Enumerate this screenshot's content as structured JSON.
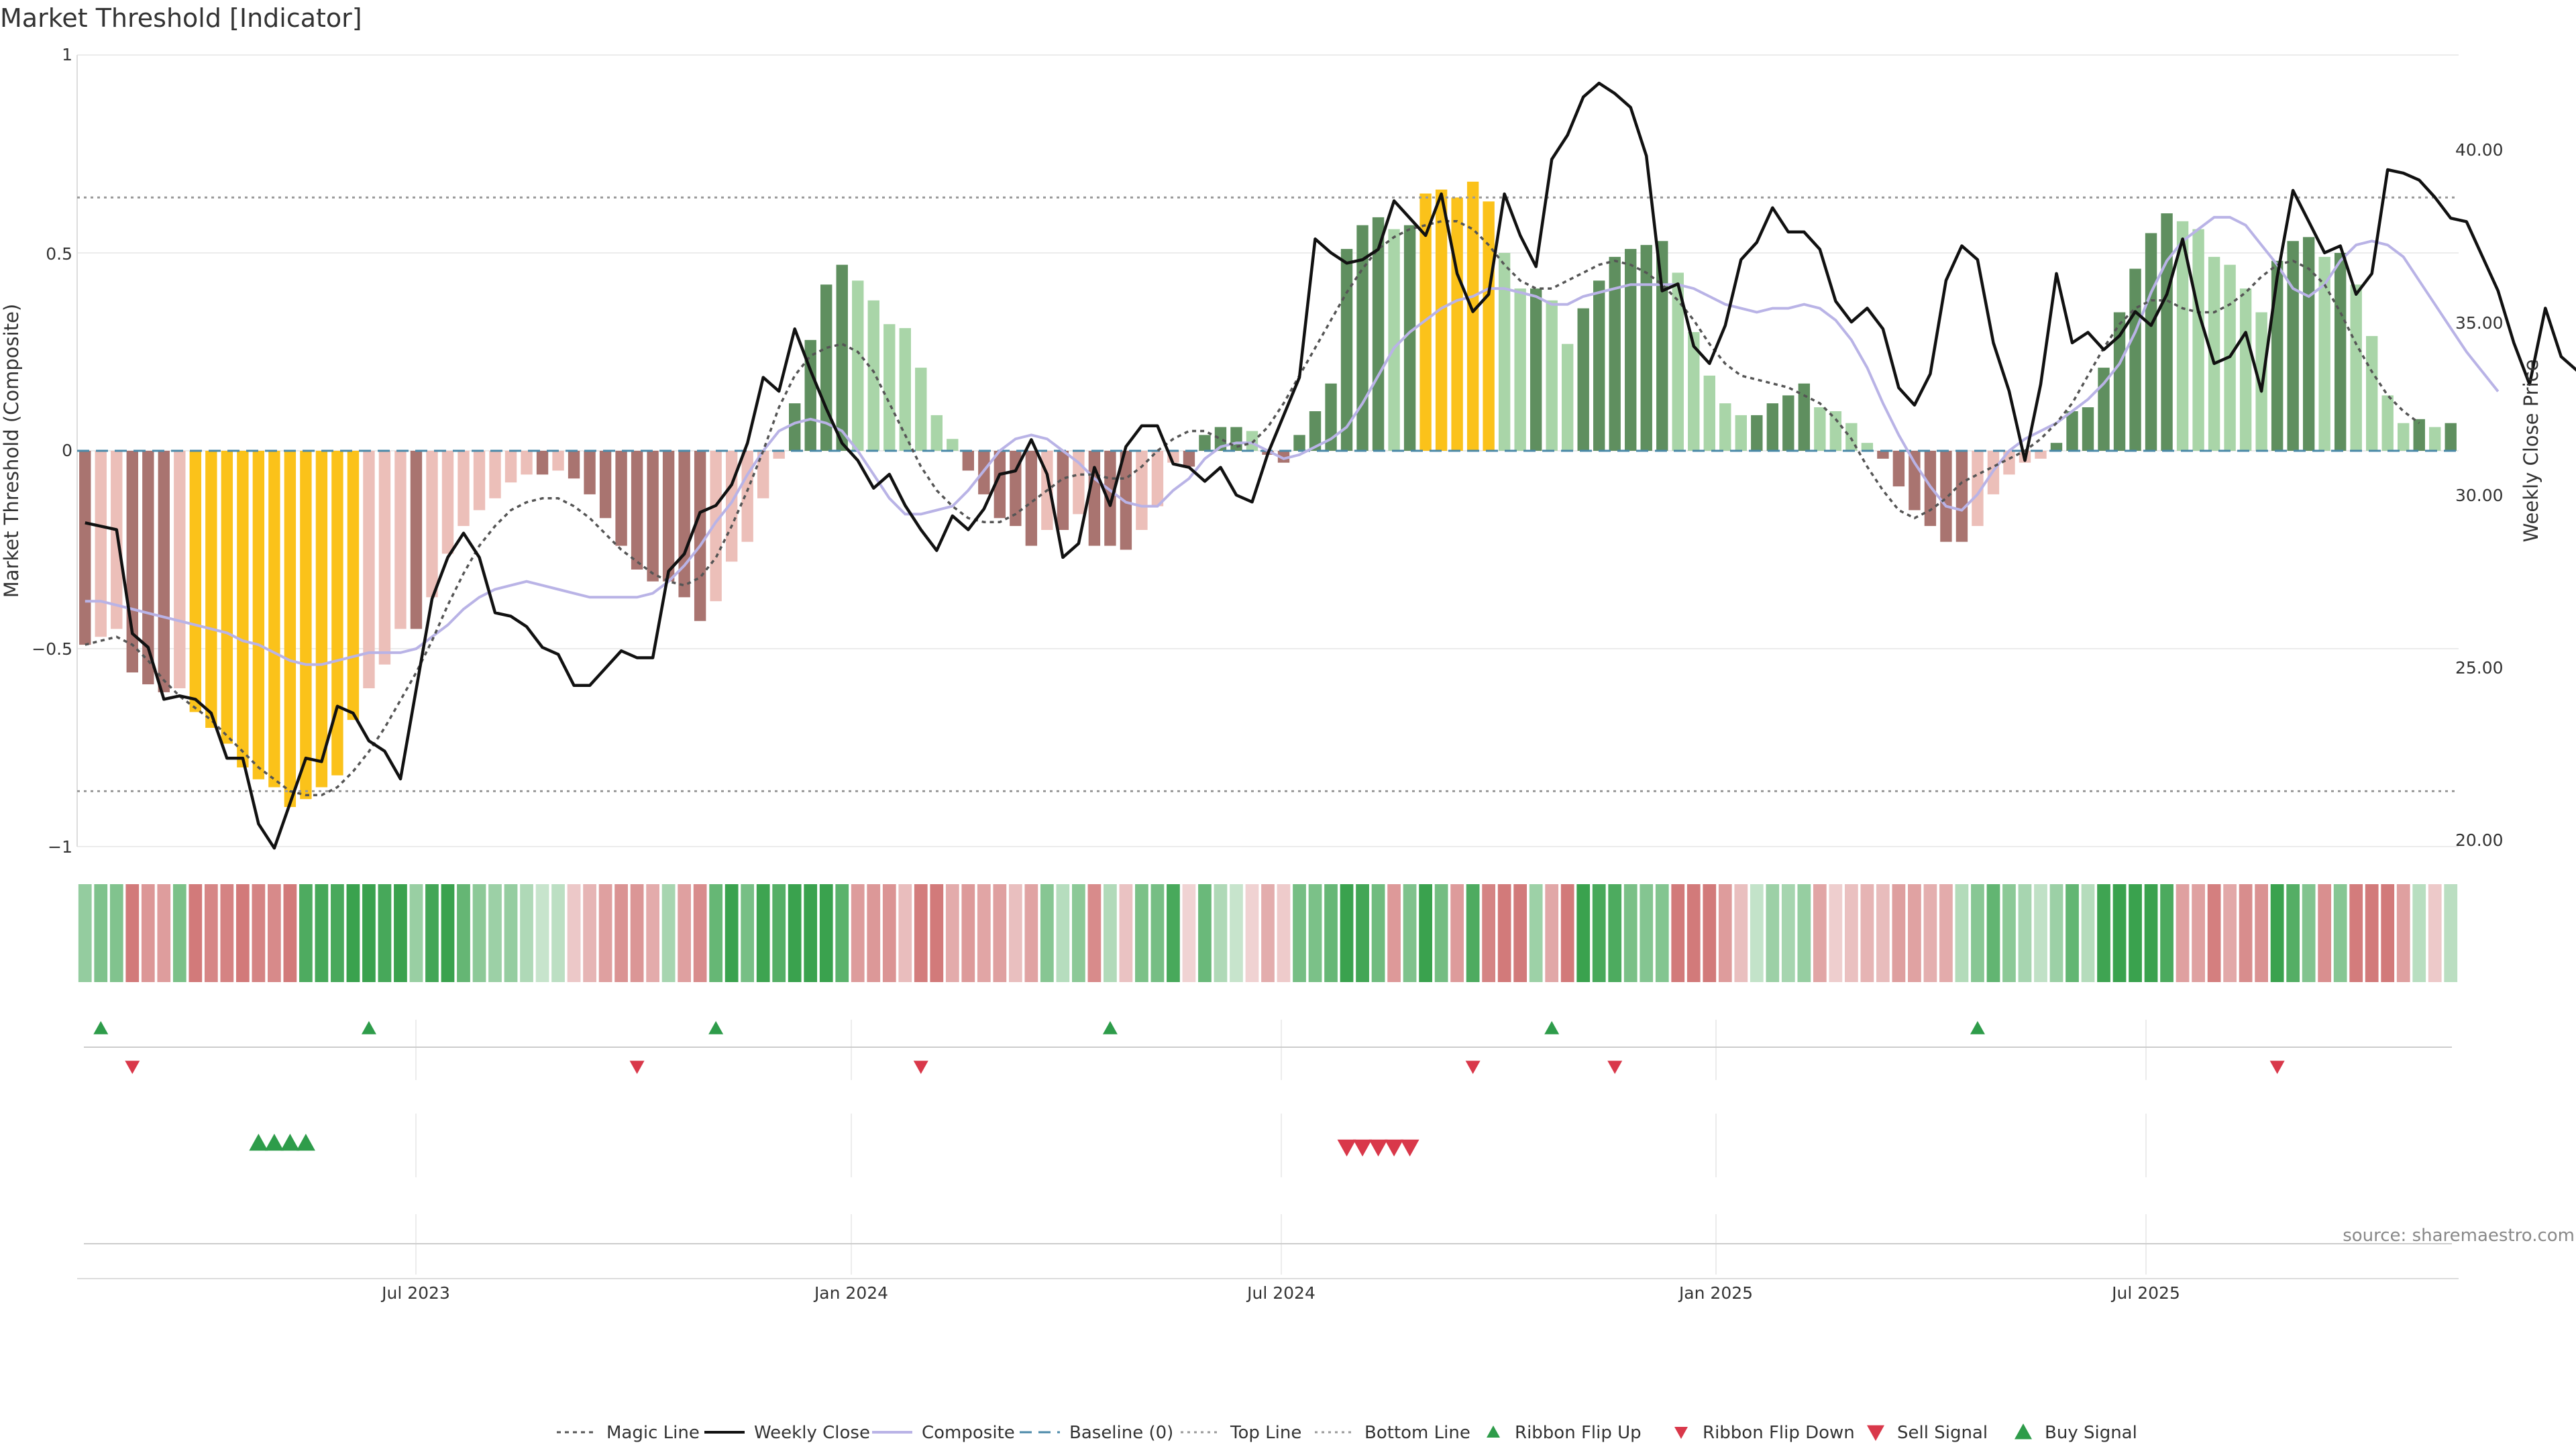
{
  "chart_data": {
    "type": "bar",
    "title": "Market Threshold [Indicator]",
    "ylabel_left": "Market Threshold (Composite)",
    "ylabel_right": "Weekly Close Price",
    "ylim_left": [
      -1,
      1
    ],
    "ylim_right": [
      20,
      42
    ],
    "left_ticks": [
      "1",
      "0.5",
      "0",
      "−0.5",
      "−1"
    ],
    "right_ticks": [
      "40.00",
      "35.00",
      "30.00",
      "25.00",
      "20.00"
    ],
    "x_ticks": [
      "Jul 2023",
      "Jan 2024",
      "Jul 2024",
      "Jan 2025",
      "Jul 2025"
    ],
    "source": "source: sharemaestro.com",
    "top_line": 0.64,
    "bottom_line": -0.86,
    "composite_bars": [
      -0.49,
      -0.47,
      -0.45,
      -0.56,
      -0.59,
      -0.61,
      -0.6,
      -0.66,
      -0.7,
      -0.74,
      -0.8,
      -0.83,
      -0.85,
      -0.9,
      -0.88,
      -0.85,
      -0.82,
      -0.68,
      -0.6,
      -0.54,
      -0.45,
      -0.45,
      -0.37,
      -0.26,
      -0.19,
      -0.15,
      -0.12,
      -0.08,
      -0.06,
      -0.06,
      -0.05,
      -0.07,
      -0.11,
      -0.17,
      -0.24,
      -0.3,
      -0.33,
      -0.33,
      -0.37,
      -0.43,
      -0.38,
      -0.28,
      -0.23,
      -0.12,
      -0.02,
      0.12,
      0.28,
      0.42,
      0.47,
      0.43,
      0.38,
      0.32,
      0.31,
      0.21,
      0.09,
      0.03,
      -0.05,
      -0.11,
      -0.17,
      -0.19,
      -0.24,
      -0.2,
      -0.2,
      -0.16,
      -0.24,
      -0.24,
      -0.25,
      -0.2,
      -0.14,
      -0.03,
      -0.04,
      0.04,
      0.06,
      0.06,
      0.05,
      -0.01,
      -0.03,
      0.04,
      0.1,
      0.17,
      0.51,
      0.57,
      0.59,
      0.56,
      0.57,
      0.65,
      0.66,
      0.64,
      0.68,
      0.63,
      0.5,
      0.41,
      0.41,
      0.38,
      0.27,
      0.36,
      0.43,
      0.49,
      0.51,
      0.52,
      0.53,
      0.45,
      0.3,
      0.19,
      0.12,
      0.09,
      0.09,
      0.12,
      0.14,
      0.17,
      0.11,
      0.1,
      0.07,
      0.02,
      -0.02,
      -0.09,
      -0.15,
      -0.19,
      -0.23,
      -0.23,
      -0.19,
      -0.11,
      -0.06,
      -0.03,
      -0.02,
      0.02,
      0.1,
      0.11,
      0.21,
      0.35,
      0.46,
      0.55,
      0.6,
      0.58,
      0.56,
      0.49,
      0.47,
      0.41,
      0.35,
      0.48,
      0.53,
      0.54,
      0.49,
      0.5,
      0.42,
      0.29,
      0.14,
      0.07,
      0.08,
      0.06,
      0.07
    ],
    "weekly_close": [
      29.2,
      29.1,
      29.0,
      26.0,
      25.6,
      24.1,
      24.2,
      24.1,
      23.7,
      22.4,
      22.4,
      20.5,
      19.8,
      21.1,
      22.4,
      22.3,
      23.9,
      23.7,
      22.9,
      22.6,
      21.8,
      24.4,
      27.0,
      28.2,
      28.9,
      28.2,
      26.6,
      26.5,
      26.2,
      25.6,
      25.4,
      24.5,
      24.5,
      25.0,
      25.5,
      25.3,
      25.3,
      27.8,
      28.3,
      29.5,
      29.7,
      30.3,
      31.5,
      33.4,
      33.0,
      34.8,
      33.6,
      32.5,
      31.5,
      31.0,
      30.2,
      30.6,
      29.7,
      29.0,
      28.4,
      29.4,
      29.0,
      29.6,
      30.6,
      30.7,
      31.6,
      30.6,
      28.2,
      28.6,
      30.8,
      29.7,
      31.4,
      32.0,
      32.0,
      30.9,
      30.8,
      30.4,
      30.8,
      30.0,
      29.8,
      31.2,
      32.3,
      33.4,
      37.4,
      37.0,
      36.7,
      36.8,
      37.1,
      38.5,
      38.0,
      37.5,
      38.7,
      36.4,
      35.3,
      35.8,
      38.7,
      37.5,
      36.6,
      39.7,
      40.4,
      41.5,
      41.9,
      41.6,
      41.2,
      39.8,
      35.9,
      36.1,
      34.3,
      33.8,
      34.9,
      36.8,
      37.3,
      38.3,
      37.6,
      37.6,
      37.1,
      35.6,
      35.0,
      35.4,
      34.8,
      33.1,
      32.6,
      33.5,
      36.2,
      37.2,
      36.8,
      34.4,
      33.0,
      31.0,
      33.2,
      36.4,
      34.4,
      34.7,
      34.2,
      34.6,
      35.3,
      34.9,
      35.8,
      37.4,
      35.3,
      33.8,
      34.0,
      34.7,
      33.0,
      36.3,
      38.8,
      37.9,
      37.0,
      37.2,
      35.8,
      36.4,
      39.4,
      39.3,
      39.1,
      38.6,
      38.0,
      37.9,
      36.9,
      35.9,
      34.4,
      33.2,
      35.4,
      34.0,
      33.6
    ],
    "composite_line": [
      -0.38,
      -0.38,
      -0.39,
      -0.4,
      -0.41,
      -0.42,
      -0.43,
      -0.44,
      -0.45,
      -0.46,
      -0.48,
      -0.49,
      -0.51,
      -0.53,
      -0.54,
      -0.54,
      -0.53,
      -0.52,
      -0.51,
      -0.51,
      -0.51,
      -0.5,
      -0.47,
      -0.44,
      -0.4,
      -0.37,
      -0.35,
      -0.34,
      -0.33,
      -0.34,
      -0.35,
      -0.36,
      -0.37,
      -0.37,
      -0.37,
      -0.37,
      -0.36,
      -0.33,
      -0.29,
      -0.24,
      -0.18,
      -0.13,
      -0.06,
      0.0,
      0.05,
      0.07,
      0.08,
      0.07,
      0.05,
      0.0,
      -0.06,
      -0.12,
      -0.16,
      -0.16,
      -0.15,
      -0.14,
      -0.1,
      -0.05,
      0.0,
      0.03,
      0.04,
      0.03,
      0.0,
      -0.03,
      -0.07,
      -0.1,
      -0.13,
      -0.14,
      -0.14,
      -0.1,
      -0.07,
      -0.02,
      0.01,
      0.02,
      0.02,
      0.0,
      -0.02,
      -0.01,
      0.01,
      0.03,
      0.06,
      0.12,
      0.19,
      0.26,
      0.3,
      0.33,
      0.36,
      0.38,
      0.39,
      0.41,
      0.41,
      0.4,
      0.39,
      0.37,
      0.37,
      0.39,
      0.4,
      0.41,
      0.42,
      0.42,
      0.42,
      0.42,
      0.41,
      0.39,
      0.37,
      0.36,
      0.35,
      0.36,
      0.36,
      0.37,
      0.36,
      0.33,
      0.28,
      0.21,
      0.12,
      0.04,
      -0.03,
      -0.09,
      -0.14,
      -0.15,
      -0.11,
      -0.05,
      0.0,
      0.03,
      0.05,
      0.07,
      0.1,
      0.13,
      0.17,
      0.22,
      0.3,
      0.4,
      0.48,
      0.53,
      0.56,
      0.59,
      0.59,
      0.57,
      0.52,
      0.47,
      0.41,
      0.39,
      0.42,
      0.48,
      0.52,
      0.53,
      0.52,
      0.49,
      0.43,
      0.37,
      0.31,
      0.25,
      0.2,
      0.15
    ],
    "magic_line": [
      -0.49,
      -0.48,
      -0.47,
      -0.49,
      -0.53,
      -0.58,
      -0.62,
      -0.65,
      -0.68,
      -0.72,
      -0.76,
      -0.8,
      -0.83,
      -0.86,
      -0.87,
      -0.87,
      -0.85,
      -0.81,
      -0.76,
      -0.7,
      -0.63,
      -0.56,
      -0.48,
      -0.39,
      -0.31,
      -0.24,
      -0.19,
      -0.15,
      -0.13,
      -0.12,
      -0.12,
      -0.14,
      -0.17,
      -0.21,
      -0.25,
      -0.28,
      -0.31,
      -0.33,
      -0.34,
      -0.32,
      -0.27,
      -0.19,
      -0.1,
      0.0,
      0.11,
      0.19,
      0.24,
      0.26,
      0.27,
      0.25,
      0.2,
      0.12,
      0.04,
      -0.04,
      -0.1,
      -0.14,
      -0.17,
      -0.18,
      -0.18,
      -0.16,
      -0.13,
      -0.1,
      -0.07,
      -0.06,
      -0.06,
      -0.07,
      -0.07,
      -0.04,
      0.0,
      0.03,
      0.05,
      0.05,
      0.03,
      0.01,
      0.02,
      0.06,
      0.12,
      0.19,
      0.26,
      0.33,
      0.4,
      0.46,
      0.51,
      0.54,
      0.56,
      0.57,
      0.58,
      0.58,
      0.56,
      0.52,
      0.47,
      0.43,
      0.41,
      0.41,
      0.43,
      0.45,
      0.47,
      0.48,
      0.47,
      0.45,
      0.42,
      0.38,
      0.33,
      0.27,
      0.22,
      0.19,
      0.18,
      0.17,
      0.16,
      0.14,
      0.12,
      0.08,
      0.03,
      -0.04,
      -0.1,
      -0.15,
      -0.17,
      -0.15,
      -0.12,
      -0.08,
      -0.06,
      -0.04,
      -0.02,
      0.0,
      0.03,
      0.07,
      0.12,
      0.19,
      0.26,
      0.32,
      0.36,
      0.38,
      0.38,
      0.36,
      0.35,
      0.35,
      0.37,
      0.4,
      0.44,
      0.47,
      0.48,
      0.46,
      0.42,
      0.35,
      0.27,
      0.2,
      0.14,
      0.1,
      0.07
    ]
  },
  "signals": {
    "ribbon_flip_up": [
      1,
      18,
      40,
      65,
      93,
      120
    ],
    "ribbon_flip_down": [
      3,
      35,
      53,
      88,
      97,
      139
    ],
    "buy_signal": [
      11,
      12,
      13,
      14
    ],
    "sell_signal": [
      80,
      81,
      82,
      83,
      84
    ]
  },
  "legend": [
    {
      "key": "magic",
      "label": "Magic Line"
    },
    {
      "key": "close",
      "label": "Weekly Close"
    },
    {
      "key": "composite",
      "label": "Composite"
    },
    {
      "key": "baseline",
      "label": "Baseline (0)"
    },
    {
      "key": "top",
      "label": "Top Line"
    },
    {
      "key": "bottom",
      "label": "Bottom Line"
    },
    {
      "key": "flipup",
      "label": "Ribbon Flip Up"
    },
    {
      "key": "flipdown",
      "label": "Ribbon Flip Down"
    },
    {
      "key": "sell",
      "label": "Sell Signal"
    },
    {
      "key": "buy",
      "label": "Buy Signal"
    }
  ],
  "colors": {
    "pos_strong": "#5f8f5f",
    "pos_light": "#a9d5a8",
    "neg_strong": "#a97470",
    "neg_light": "#ecbfb9",
    "extreme": "#fbc21a",
    "close": "#111111",
    "composite": "#b9b3e6",
    "magic": "#555555",
    "baseline": "#4a88a8",
    "buy": "#2e9c4a",
    "sell": "#d9384a"
  }
}
